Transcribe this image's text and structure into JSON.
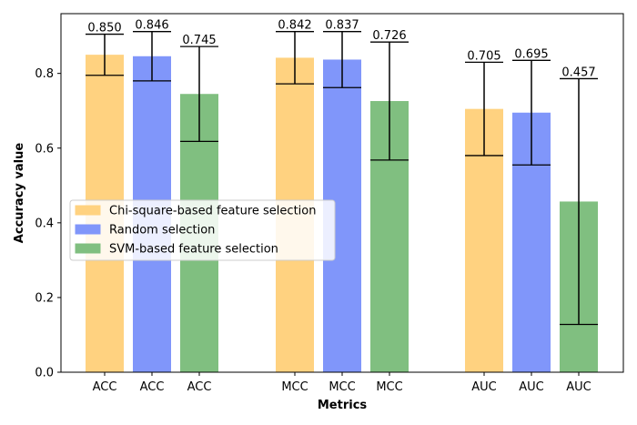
{
  "chart_data": {
    "type": "bar",
    "xlabel": "Metrics",
    "ylabel": "Accuracy value",
    "ylim": [
      0,
      0.96
    ],
    "yticks": [
      "0.0",
      "0.2",
      "0.4",
      "0.6",
      "0.8"
    ],
    "grid": false,
    "legend_position": "center-left",
    "series": [
      {
        "name": "Chi-square-based feature selection",
        "color": "#ffd280"
      },
      {
        "name": "Random selection",
        "color": "#8096fa"
      },
      {
        "name": "SVM-based feature selection",
        "color": "#80bf80"
      }
    ],
    "bars": [
      {
        "label": "ACC",
        "series": 0,
        "value": 0.85,
        "value_label": "0.850",
        "err_low": 0.795,
        "err_high": 0.905
      },
      {
        "label": "ACC",
        "series": 1,
        "value": 0.846,
        "value_label": "0.846",
        "err_low": 0.78,
        "err_high": 0.912
      },
      {
        "label": "ACC",
        "series": 2,
        "value": 0.745,
        "value_label": "0.745",
        "err_low": 0.618,
        "err_high": 0.872
      },
      {
        "label": "MCC",
        "series": 0,
        "value": 0.842,
        "value_label": "0.842",
        "err_low": 0.772,
        "err_high": 0.912
      },
      {
        "label": "MCC",
        "series": 1,
        "value": 0.837,
        "value_label": "0.837",
        "err_low": 0.762,
        "err_high": 0.912
      },
      {
        "label": "MCC",
        "series": 2,
        "value": 0.726,
        "value_label": "0.726",
        "err_low": 0.568,
        "err_high": 0.884
      },
      {
        "label": "AUC",
        "series": 0,
        "value": 0.705,
        "value_label": "0.705",
        "err_low": 0.58,
        "err_high": 0.83
      },
      {
        "label": "AUC",
        "series": 1,
        "value": 0.695,
        "value_label": "0.695",
        "err_low": 0.555,
        "err_high": 0.835
      },
      {
        "label": "AUC",
        "series": 2,
        "value": 0.457,
        "value_label": "0.457",
        "err_low": 0.128,
        "err_high": 0.786
      }
    ]
  }
}
